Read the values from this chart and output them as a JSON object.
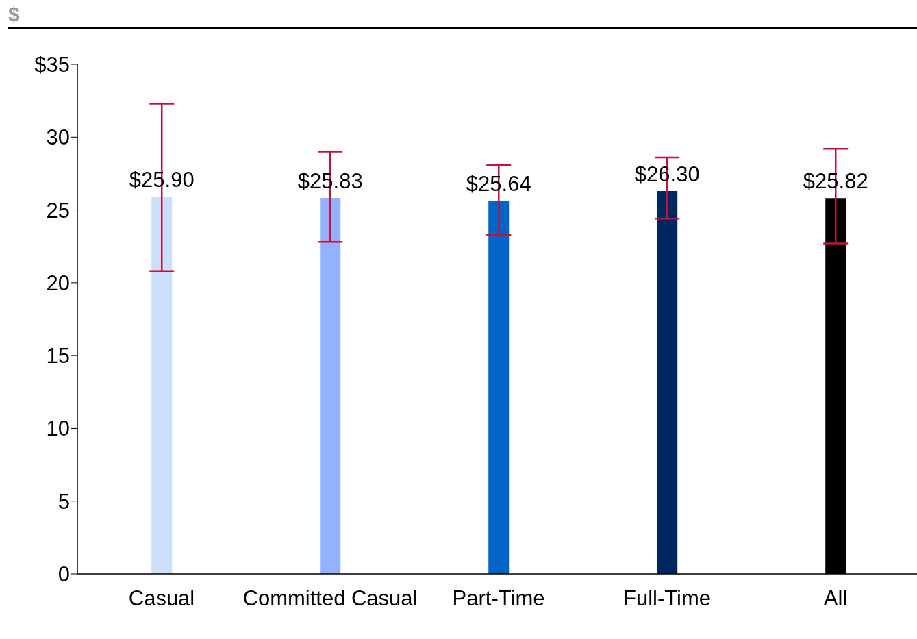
{
  "chart_data": {
    "type": "bar",
    "ylabel": "$",
    "categories": [
      "Casual",
      "Committed Casual",
      "Part-Time",
      "Full-Time",
      "All"
    ],
    "values": [
      25.9,
      25.83,
      25.64,
      26.3,
      25.82
    ],
    "value_labels": [
      "$25.90",
      "$25.83",
      "$25.64",
      "$26.30",
      "$25.82"
    ],
    "colors": [
      "#c9e0f8",
      "#92b2fc",
      "#0064c8",
      "#002860",
      "#000000"
    ],
    "errors": [
      [
        20.8,
        32.3
      ],
      [
        22.8,
        29.0
      ],
      [
        23.3,
        28.1
      ],
      [
        24.4,
        28.6
      ],
      [
        22.7,
        29.2
      ]
    ],
    "ylim": [
      0,
      35
    ],
    "yticks": [
      0,
      5,
      10,
      15,
      20,
      25,
      30,
      {
        "value": 35,
        "label": "$35"
      }
    ],
    "grid": false,
    "legend": false
  }
}
